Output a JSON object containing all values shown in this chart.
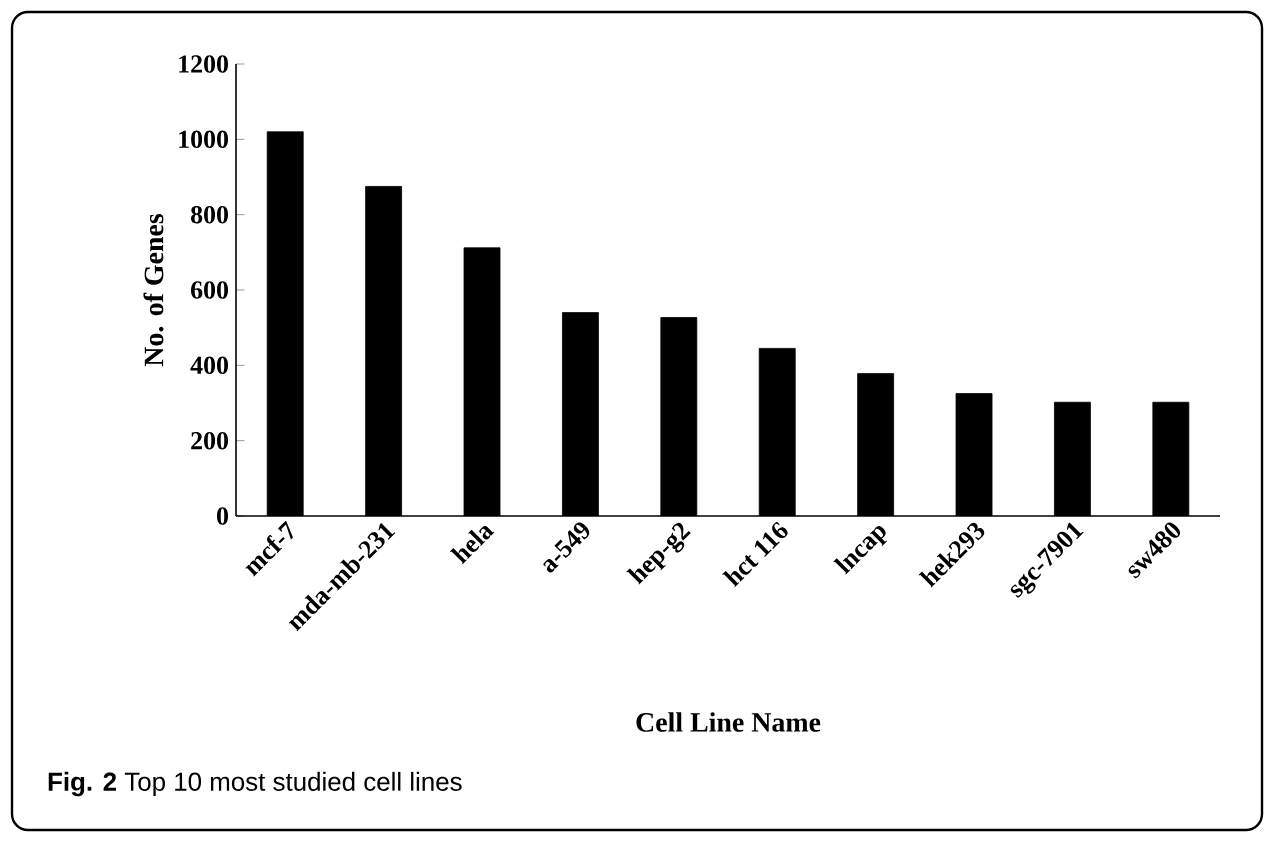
{
  "chart_data": {
    "type": "bar",
    "xlabel": "Cell Line Name",
    "ylabel": "No. of Genes",
    "categories": [
      "mcf-7",
      "mda-mb-231",
      "hela",
      "a-549",
      "hep-g2",
      "hct 116",
      "lncap",
      "hek293",
      "sgc-7901",
      "sw480"
    ],
    "values": [
      1020,
      875,
      712,
      540,
      527,
      445,
      378,
      325,
      302,
      302
    ],
    "color": "#000000",
    "ylim": [
      0,
      1200
    ],
    "yticks": [
      0,
      200,
      400,
      600,
      800,
      1000,
      1200
    ],
    "annotations": [
      "**Fig. 2** Top 10 most studied cell lines"
    ]
  }
}
